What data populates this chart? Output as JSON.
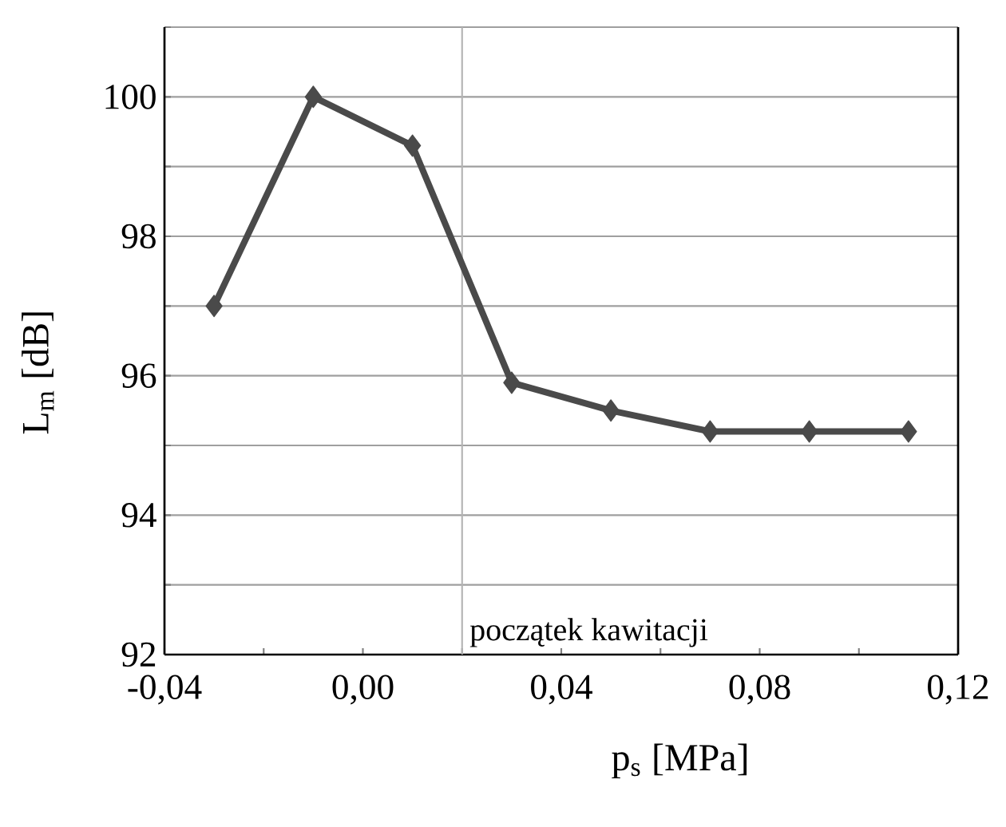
{
  "chart_data": {
    "type": "line",
    "xlabel": "p$_{s}$ [MPa]",
    "ylabel": "L$_{m}$ [dB]",
    "x": [
      -0.03,
      -0.01,
      0.01,
      0.03,
      0.05,
      0.07,
      0.09,
      0.11
    ],
    "series": [
      {
        "color": "#4a4a4a",
        "values": [
          97,
          100,
          99.3,
          95.9,
          95.5,
          95.2,
          95.2,
          95.2
        ]
      }
    ],
    "xlim": [
      -0.04,
      0.12
    ],
    "ylim": [
      92,
      101
    ],
    "xticks": [
      {
        "value": -0.04,
        "label": "-0,04"
      },
      {
        "value": -0.02,
        "label": null
      },
      {
        "value": 0,
        "label": "0,00"
      },
      {
        "value": 0.02,
        "label": null
      },
      {
        "value": 0.04,
        "label": "0,04"
      },
      {
        "value": 0.06,
        "label": null
      },
      {
        "value": 0.08,
        "label": "0,08"
      },
      {
        "value": 0.1,
        "label": null
      },
      {
        "value": 0.12,
        "label": "0,12"
      }
    ],
    "yticks": [
      92,
      {
        "value": 93,
        "label": null
      },
      94,
      {
        "value": 95,
        "label": null
      },
      96,
      {
        "value": 97,
        "label": null
      },
      98,
      {
        "value": 99,
        "label": null
      },
      100,
      {
        "value": 101,
        "label": null
      }
    ],
    "ref_lines": [
      {
        "axis": "x",
        "value": 0.02,
        "label": "początek kawitacji",
        "color": "#b4b4b4"
      }
    ],
    "grid": "y",
    "marker": "diamond",
    "line_style": "solid"
  }
}
